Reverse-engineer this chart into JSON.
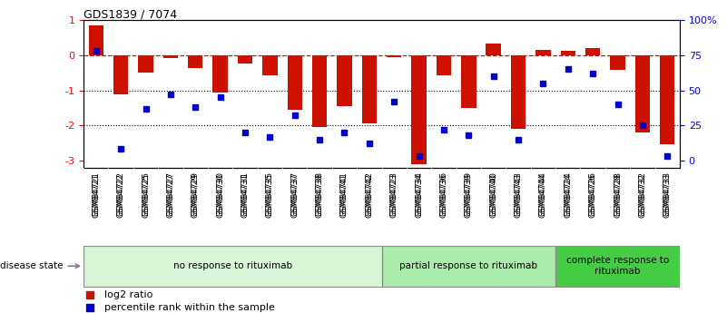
{
  "title": "GDS1839 / 7074",
  "samples": [
    "GSM84721",
    "GSM84722",
    "GSM84725",
    "GSM84727",
    "GSM84729",
    "GSM84730",
    "GSM84731",
    "GSM84735",
    "GSM84737",
    "GSM84738",
    "GSM84741",
    "GSM84742",
    "GSM84723",
    "GSM84734",
    "GSM84736",
    "GSM84739",
    "GSM84740",
    "GSM84743",
    "GSM84744",
    "GSM84724",
    "GSM84726",
    "GSM84728",
    "GSM84732",
    "GSM84733"
  ],
  "log2_ratio": [
    0.85,
    -1.1,
    -0.5,
    -0.08,
    -0.35,
    -1.05,
    -0.22,
    -0.58,
    -1.55,
    -2.05,
    -1.45,
    -1.95,
    -0.05,
    -3.1,
    -0.58,
    -1.5,
    0.35,
    -2.1,
    0.15,
    0.12,
    0.22,
    -0.42,
    -2.2,
    -2.55
  ],
  "percentile": [
    78,
    8,
    37,
    47,
    38,
    45,
    20,
    17,
    32,
    15,
    20,
    12,
    42,
    3,
    22,
    18,
    60,
    15,
    55,
    65,
    62,
    40,
    25,
    3
  ],
  "groups": [
    {
      "label": "no response to rituximab",
      "start": 0,
      "end": 12,
      "color": "#d8f5d8"
    },
    {
      "label": "partial response to rituximab",
      "start": 12,
      "end": 19,
      "color": "#aaeaaa"
    },
    {
      "label": "complete response to\nrituximab",
      "start": 19,
      "end": 24,
      "color": "#44cc44"
    }
  ],
  "bar_color": "#cc1100",
  "dot_color": "#0000cc",
  "ylim": [
    -3.2,
    1.0
  ],
  "right_yticks": [
    100,
    75,
    50,
    25,
    0
  ],
  "right_ytick_labels": [
    "100%",
    "75",
    "50",
    "25",
    "0"
  ],
  "disease_state_label": "disease state",
  "legend_items": [
    "log2 ratio",
    "percentile rank within the sample"
  ]
}
